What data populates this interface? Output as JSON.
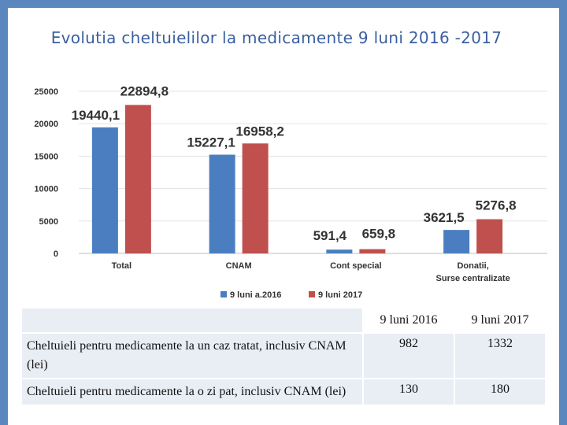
{
  "slide": {
    "title": "Evolutia cheltuielilor la medicamente 9 luni 2016 -2017"
  },
  "chart_data": {
    "type": "bar",
    "categories": [
      "Total",
      "CNAM",
      "Cont special",
      "Donatii, Surse centralizate"
    ],
    "series": [
      {
        "name": "9 luni a.2016",
        "values": [
          19440.1,
          15227.1,
          591.4,
          3621.5
        ],
        "labels": [
          "19440,1",
          "15227,1",
          "591,4",
          "3621,5"
        ],
        "color": "#4a7ec0"
      },
      {
        "name": "9 luni 2017",
        "values": [
          22894.8,
          16958.2,
          659.8,
          5276.8
        ],
        "labels": [
          "22894,8",
          "16958,2",
          "659,8",
          "5276,8"
        ],
        "color": "#c0504d"
      }
    ],
    "y_ticks": [
      0,
      5000,
      10000,
      15000,
      20000,
      25000
    ],
    "ylim": [
      0,
      25000
    ],
    "grid": true,
    "legend_position": "bottom"
  },
  "table": {
    "headers": [
      "",
      "9 luni 2016",
      "9 luni 2017"
    ],
    "rows": [
      {
        "label": "Cheltuieli pentru medicamente la un caz tratat, inclusiv CNAM (lei)",
        "v2016": "982",
        "v2017": "1332"
      },
      {
        "label": "Cheltuieli pentru medicamente la o zi pat, inclusiv CNAM (lei)",
        "v2016": "130",
        "v2017": "180"
      }
    ]
  }
}
